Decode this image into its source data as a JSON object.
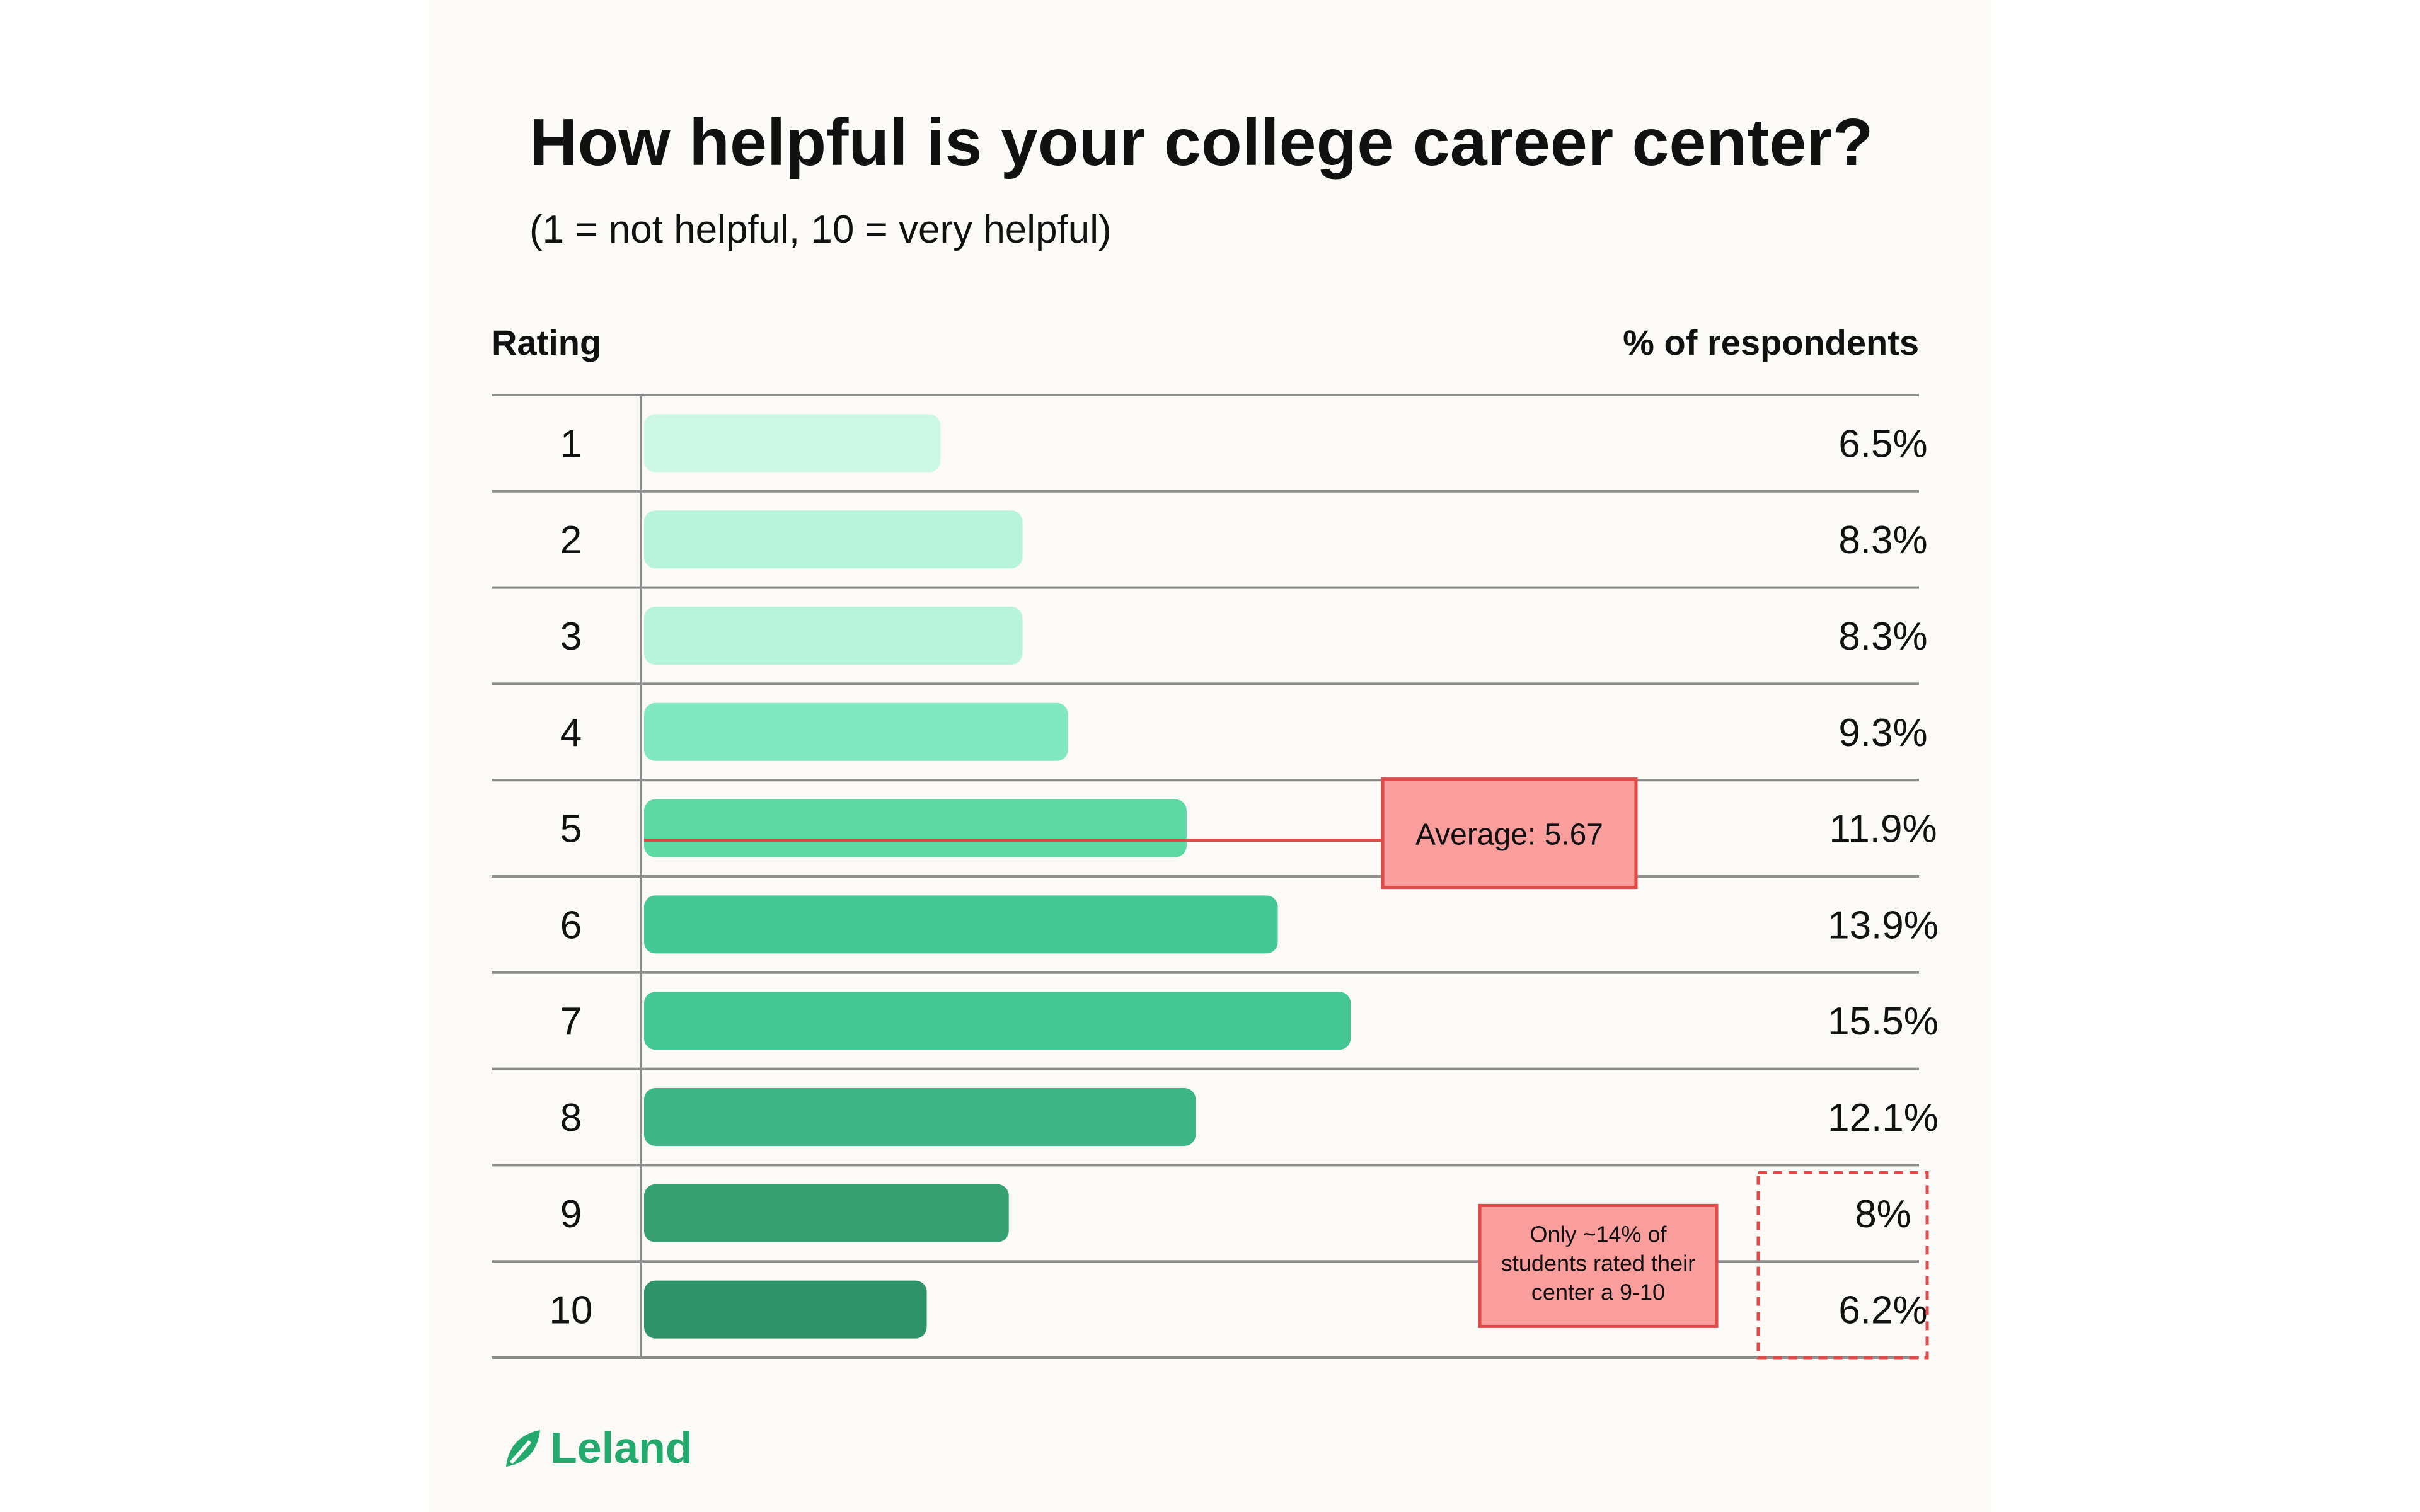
{
  "chart_data": {
    "type": "bar",
    "orientation": "horizontal",
    "title": "How helpful is your college career center?",
    "subtitle": "(1 = not helpful, 10 = very helpful)",
    "row_header": "Rating",
    "value_header": "% of respondents",
    "categories": [
      "1",
      "2",
      "3",
      "4",
      "5",
      "6",
      "7",
      "8",
      "9",
      "10"
    ],
    "values": [
      6.5,
      8.3,
      8.3,
      9.3,
      11.9,
      13.9,
      15.5,
      12.1,
      8,
      6.2
    ],
    "value_labels": [
      "6.5%",
      "8.3%",
      "8.3%",
      "9.3%",
      "11.9%",
      "13.9%",
      "15.5%",
      "12.1%",
      "8%",
      "6.2%"
    ],
    "xlim": [
      0,
      23.5
    ],
    "bar_colors": [
      "#ccf6e6",
      "#b8f3db",
      "#b8f3db",
      "#82e8c1",
      "#5dd9a3",
      "#46c896",
      "#46c896",
      "#3cb684",
      "#36a072",
      "#2f936a"
    ],
    "average": {
      "value": 5.67,
      "label": "Average: 5.67",
      "row": "5",
      "color": "#e24a4a",
      "box_fill": "#f99d9d"
    },
    "callout": {
      "text_lines": [
        "Only ~14% of",
        "students rated their",
        "center a 9-10"
      ],
      "rows": [
        "9",
        "10"
      ],
      "color": "#e24a4a",
      "box_fill": "#f99d9d"
    }
  },
  "brand": {
    "name": "Leland",
    "color": "#22a96b"
  },
  "colors": {
    "text": "#111111",
    "grid": "#8c8c8c",
    "background": "#fbfaf7"
  }
}
